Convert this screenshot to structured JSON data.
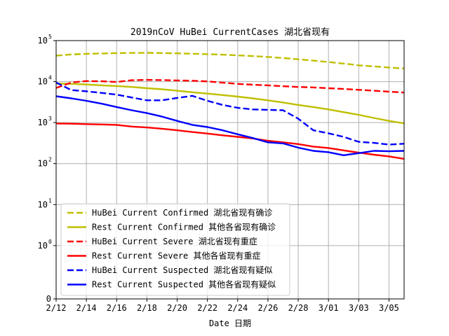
{
  "chart_data": {
    "type": "line",
    "title": "2019nCoV HuBei CurrentCases 湖北省现有",
    "xlabel": "Date 日期",
    "ylabel": "",
    "yscale": "symlog",
    "ylim": [
      0,
      100000
    ],
    "y_ticks": [
      {
        "value": 0,
        "base": "0",
        "exp": ""
      },
      {
        "value": 1,
        "base": "10",
        "exp": "0"
      },
      {
        "value": 10,
        "base": "10",
        "exp": "1"
      },
      {
        "value": 100,
        "base": "10",
        "exp": "2"
      },
      {
        "value": 1000,
        "base": "10",
        "exp": "3"
      },
      {
        "value": 10000,
        "base": "10",
        "exp": "4"
      },
      {
        "value": 100000,
        "base": "10",
        "exp": "5"
      }
    ],
    "x": [
      "2/12",
      "2/13",
      "2/14",
      "2/15",
      "2/16",
      "2/17",
      "2/18",
      "2/19",
      "2/20",
      "2/21",
      "2/22",
      "2/23",
      "2/24",
      "2/25",
      "2/26",
      "2/27",
      "2/28",
      "2/29",
      "3/01",
      "3/02",
      "3/03",
      "3/04",
      "3/05",
      "3/06"
    ],
    "x_tick_labels": [
      "2/12",
      "2/14",
      "2/16",
      "2/18",
      "2/20",
      "2/22",
      "2/24",
      "2/26",
      "2/28",
      "3/01",
      "3/03",
      "3/05"
    ],
    "grid": true,
    "legend_position": "lower-left",
    "series": [
      {
        "name": "HuBei Current Confirmed 湖北省现有确诊",
        "color": "#bfbf00",
        "dash": "dashed",
        "values": [
          43000,
          46000,
          47500,
          48500,
          49500,
          50000,
          50300,
          49600,
          48800,
          47800,
          46700,
          45300,
          43700,
          41900,
          40000,
          37500,
          35000,
          32500,
          30000,
          27500,
          25000,
          23400,
          22100,
          20800
        ]
      },
      {
        "name": "Rest Current Confirmed 其他各省现有确诊",
        "color": "#bfbf00",
        "dash": "solid",
        "values": [
          9000,
          8800,
          8500,
          8100,
          7800,
          7400,
          6900,
          6500,
          6000,
          5500,
          5100,
          4700,
          4300,
          3900,
          3500,
          3100,
          2700,
          2400,
          2100,
          1800,
          1550,
          1300,
          1100,
          960
        ]
      },
      {
        "name": "HuBei Current Severe 湖北省现有重症",
        "color": "#ff0000",
        "dash": "dashed",
        "values": [
          7000,
          9500,
          10300,
          10200,
          9800,
          10800,
          11000,
          10900,
          10700,
          10500,
          10100,
          9400,
          8800,
          8400,
          8100,
          7700,
          7400,
          7200,
          6900,
          6600,
          6300,
          6000,
          5700,
          5400
        ]
      },
      {
        "name": "Rest Current Severe 其他各省现有重症",
        "color": "#ff0000",
        "dash": "solid",
        "values": [
          950,
          940,
          920,
          900,
          880,
          800,
          760,
          710,
          650,
          590,
          540,
          490,
          450,
          410,
          360,
          330,
          300,
          260,
          240,
          210,
          185,
          165,
          150,
          130
        ]
      },
      {
        "name": "HuBei Current Suspected 湖北省现有疑似",
        "color": "#0000ff",
        "dash": "dashed",
        "values": [
          9500,
          6200,
          5800,
          5300,
          4800,
          4100,
          3500,
          3500,
          4000,
          4500,
          3400,
          2700,
          2300,
          2100,
          2050,
          2000,
          1250,
          650,
          550,
          450,
          340,
          320,
          290,
          305
        ]
      },
      {
        "name": "Rest Current Suspected 其他各省现有疑似",
        "color": "#0000ff",
        "dash": "solid",
        "values": [
          4400,
          3900,
          3400,
          2900,
          2400,
          2000,
          1700,
          1400,
          1100,
          880,
          780,
          650,
          520,
          420,
          330,
          310,
          245,
          205,
          190,
          160,
          180,
          205,
          200,
          205
        ]
      }
    ]
  }
}
